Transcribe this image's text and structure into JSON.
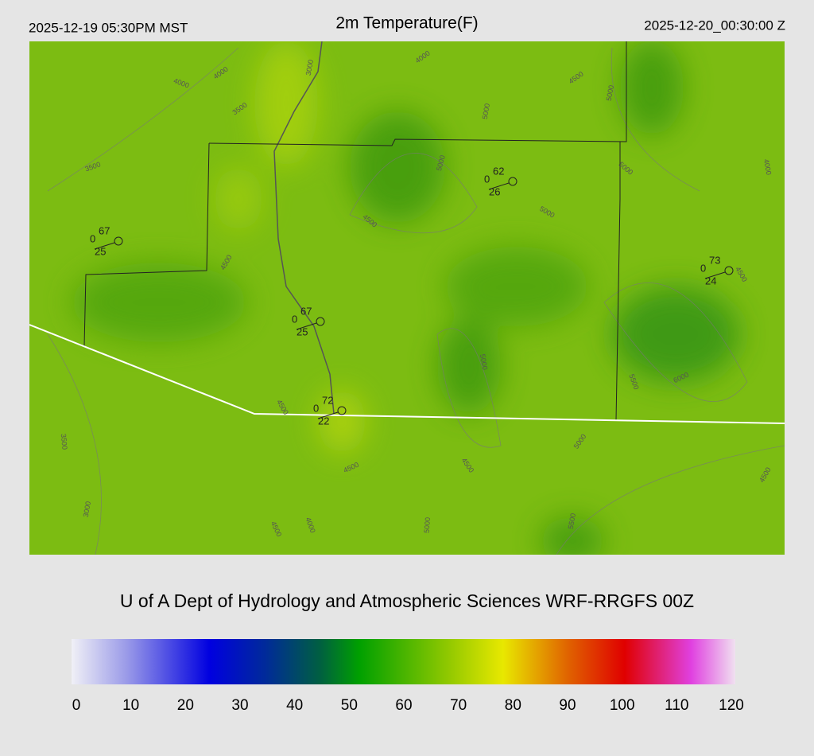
{
  "header": {
    "left": "2025-12-19 05:30PM MST",
    "title": "2m Temperature(F)",
    "right": "2025-12-20_00:30:00 Z"
  },
  "footer": "U of A Dept of Hydrology and Atmospheric Sciences WRF-RRGFS 00Z",
  "colorbar": {
    "lim": [
      0,
      120
    ],
    "ticks": [
      0,
      10,
      20,
      30,
      40,
      50,
      60,
      70,
      80,
      90,
      100,
      110,
      120
    ],
    "stops": [
      {
        "value": 0,
        "color": "#f0f0f6"
      },
      {
        "value": 10,
        "color": "#9a9ae8"
      },
      {
        "value": 25,
        "color": "#0000e0"
      },
      {
        "value": 35,
        "color": "#002a9a"
      },
      {
        "value": 45,
        "color": "#006040"
      },
      {
        "value": 52,
        "color": "#00a000"
      },
      {
        "value": 68,
        "color": "#90c800"
      },
      {
        "value": 78,
        "color": "#e8e800"
      },
      {
        "value": 90,
        "color": "#e06000"
      },
      {
        "value": 100,
        "color": "#e00000"
      },
      {
        "value": 112,
        "color": "#e040e0"
      },
      {
        "value": 120,
        "color": "#f0e0f0"
      }
    ]
  },
  "stations": [
    {
      "temp": "67",
      "wind": "0",
      "dew": "25"
    },
    {
      "temp": "62",
      "wind": "0",
      "dew": "26"
    },
    {
      "temp": "73",
      "wind": "0",
      "dew": "24"
    },
    {
      "temp": "67",
      "wind": "0",
      "dew": "25"
    },
    {
      "temp": "72",
      "wind": "0",
      "dew": "22"
    }
  ],
  "contour_labels": [
    "3000",
    "4000",
    "4000",
    "4000",
    "3500",
    "3500",
    "4500",
    "5000",
    "5000",
    "5000",
    "5000",
    "4000",
    "4500",
    "5000",
    "4500",
    "4500",
    "5000",
    "5500",
    "6000",
    "4500",
    "3500",
    "5000",
    "4500",
    "4500",
    "4500",
    "3000",
    "4000",
    "4500",
    "5000",
    "5500"
  ]
}
